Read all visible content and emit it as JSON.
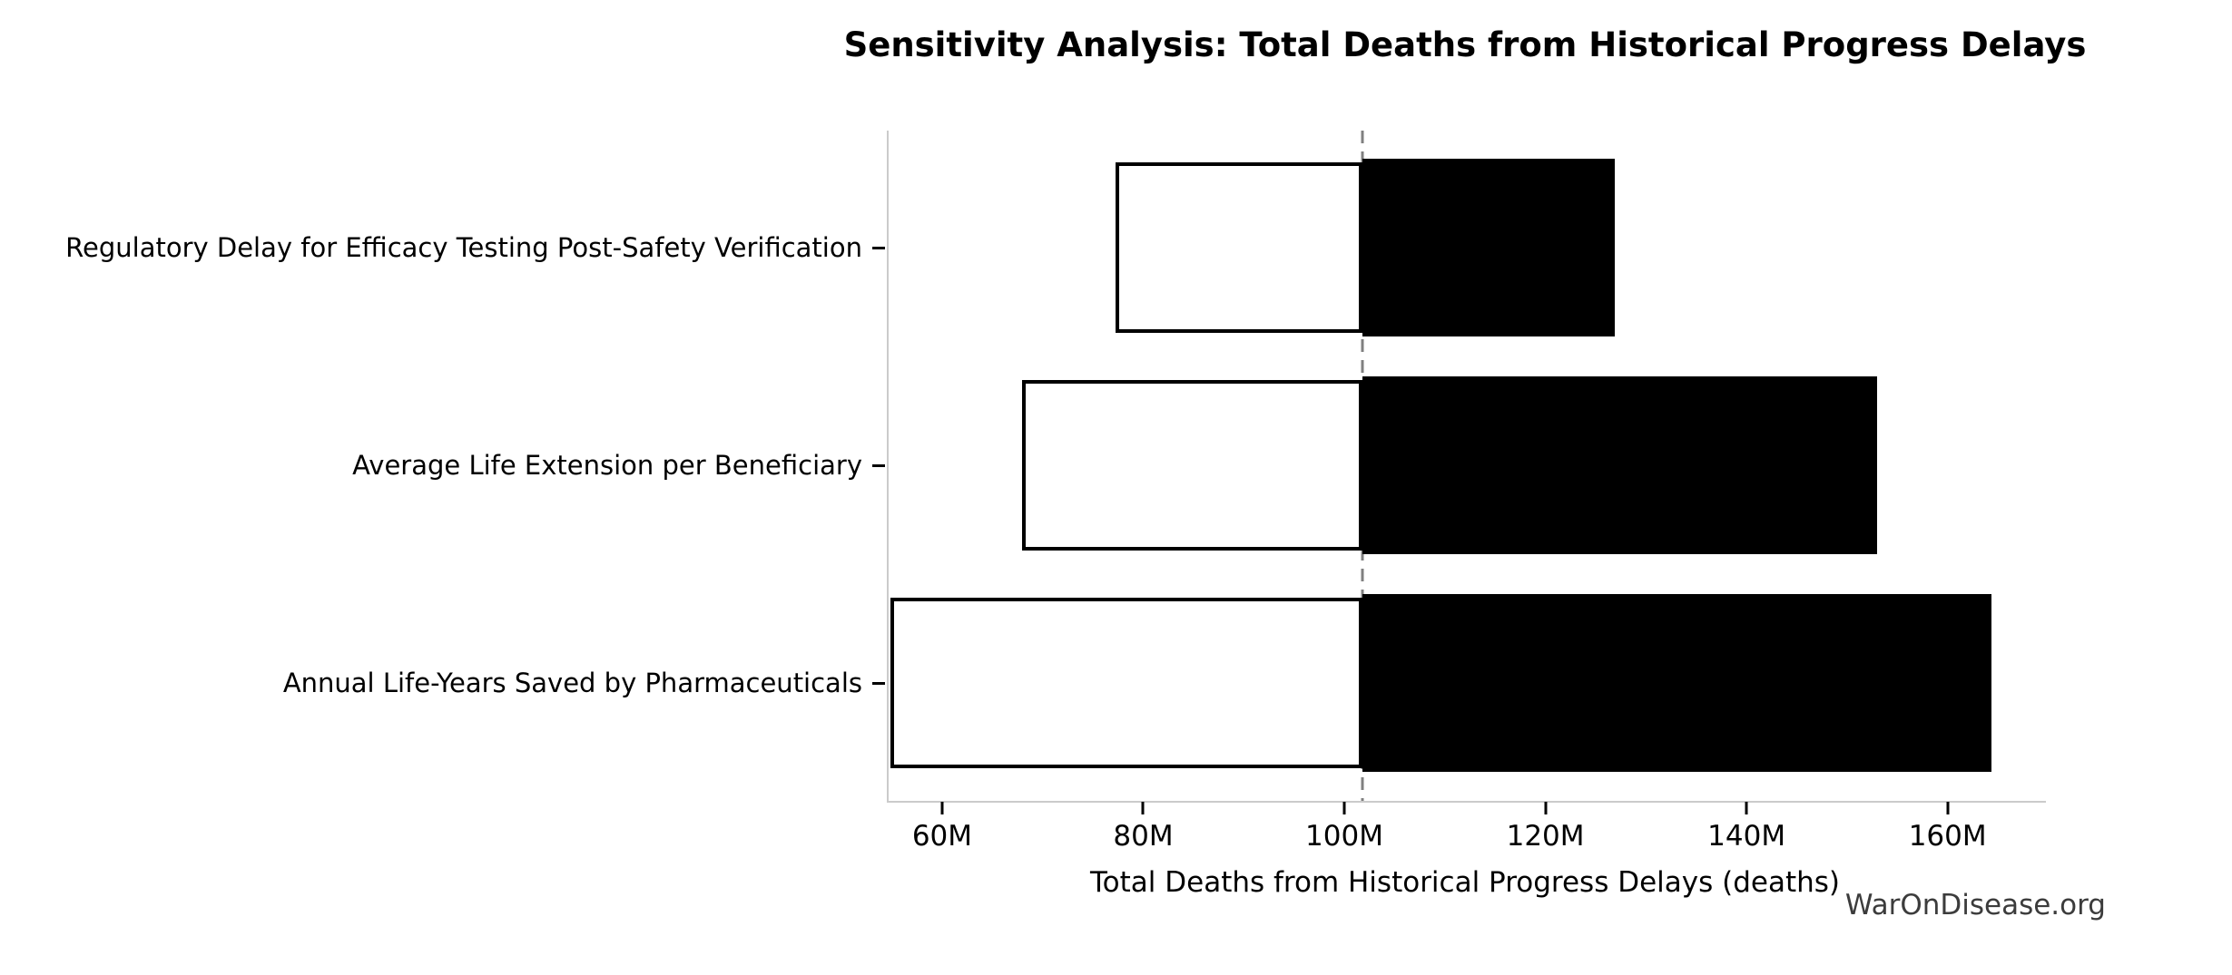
{
  "watermark": "WarOnDisease.org",
  "chart_data": {
    "type": "bar",
    "subtype": "tornado-sensitivity",
    "orientation": "horizontal",
    "title": "Sensitivity Analysis: Total Deaths from Historical Progress Delays",
    "xlabel": "Total Deaths from Historical Progress Delays (deaths)",
    "unit": "millions of deaths",
    "baseline": 101.6,
    "xlim": [
      54.5,
      169.6
    ],
    "xticks": [
      60,
      80,
      100,
      120,
      140,
      160
    ],
    "xtick_labels": [
      "60M",
      "80M",
      "100M",
      "120M",
      "140M",
      "160M"
    ],
    "bars": [
      {
        "label": "Regulatory Delay for Efficacy Testing Post-Safety Verification",
        "low": 77.1,
        "high": 126.7
      },
      {
        "label": "Average Life Extension per Beneficiary",
        "low": 67.8,
        "high": 152.8
      },
      {
        "label": "Annual Life-Years Saved by Pharmaceuticals",
        "low": 54.7,
        "high": 164.2
      }
    ],
    "legend": null,
    "grid": false,
    "colors": {
      "low_fill": "#ffffff",
      "high_fill": "#000000",
      "bar_edge": "#000000",
      "baseline_line": "#808080",
      "spine": "#cbcbcb",
      "tick": "#000000",
      "text": "#000000",
      "watermark": "#3c3c3c",
      "background": "#ffffff"
    }
  }
}
